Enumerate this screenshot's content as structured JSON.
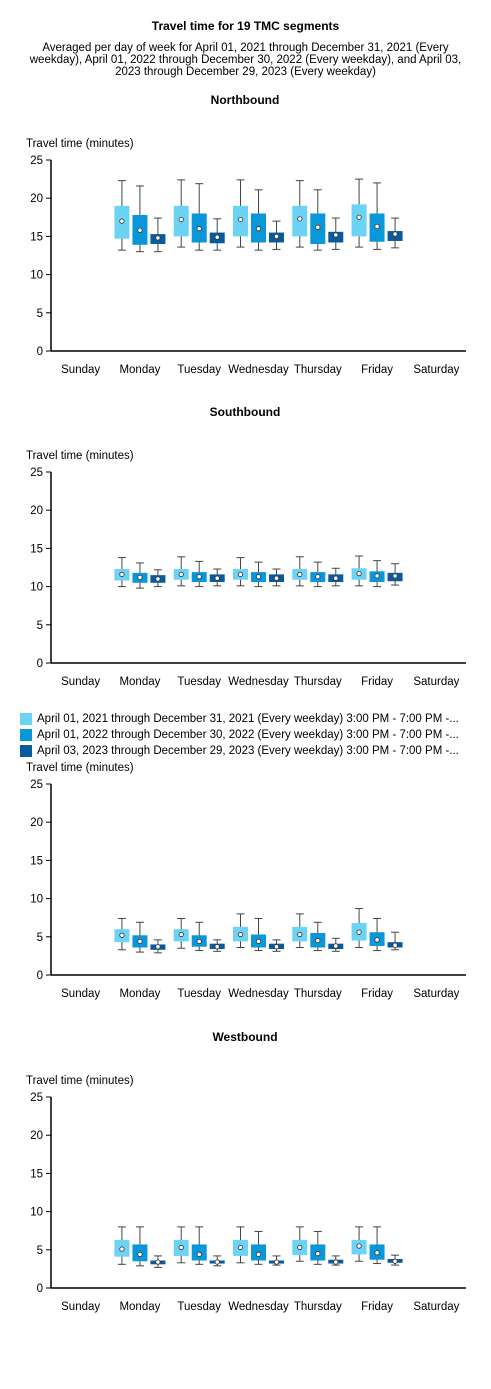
{
  "title": "Travel time for 19 TMC segments",
  "subtitle": "Averaged per day of week for April 01, 2021 through December 31, 2021 (Every weekday), April 01, 2022 through December 30, 2022 (Every weekday), and April 03, 2023 through December 29, 2023 (Every weekday)",
  "legend": [
    {
      "label": "April 01, 2021 through December 31, 2021 (Every weekday) 3:00 PM - 7:00 PM -...",
      "color": "#6dd3f5"
    },
    {
      "label": "April 01, 2022 through December 30, 2022 (Every weekday) 3:00 PM - 7:00 PM -...",
      "color": "#0a97d9"
    },
    {
      "label": "April 03, 2023 through December 29, 2023 (Every weekday) 3:00 PM - 7:00 PM -...",
      "color": "#0a5a9c"
    }
  ],
  "chart_data": [
    {
      "type": "box",
      "title": "Northbound",
      "ylabel": "Travel time (minutes)",
      "ylim": [
        0,
        25
      ],
      "yticks": [
        0,
        5,
        10,
        15,
        20,
        25
      ],
      "categories": [
        "Sunday",
        "Monday",
        "Tuesday",
        "Wednesday",
        "Thursday",
        "Friday",
        "Saturday"
      ],
      "series": [
        {
          "boxes": [
            null,
            {
              "min": 13.2,
              "q1": 14.7,
              "median": 17.0,
              "q3": 19.0,
              "max": 22.3
            },
            {
              "min": 13.6,
              "q1": 15.0,
              "median": 17.2,
              "q3": 19.0,
              "max": 22.4
            },
            {
              "min": 13.6,
              "q1": 15.0,
              "median": 17.2,
              "q3": 19.0,
              "max": 22.4
            },
            {
              "min": 13.6,
              "q1": 15.0,
              "median": 17.3,
              "q3": 19.0,
              "max": 22.3
            },
            {
              "min": 13.6,
              "q1": 15.0,
              "median": 17.5,
              "q3": 19.2,
              "max": 22.5
            },
            null
          ]
        },
        {
          "boxes": [
            null,
            {
              "min": 13.0,
              "q1": 13.9,
              "median": 15.8,
              "q3": 17.8,
              "max": 21.6
            },
            {
              "min": 13.2,
              "q1": 14.2,
              "median": 16.0,
              "q3": 18.0,
              "max": 21.9
            },
            {
              "min": 13.2,
              "q1": 14.2,
              "median": 16.0,
              "q3": 18.0,
              "max": 21.1
            },
            {
              "min": 13.2,
              "q1": 14.0,
              "median": 16.2,
              "q3": 18.0,
              "max": 21.1
            },
            {
              "min": 13.3,
              "q1": 14.3,
              "median": 16.3,
              "q3": 18.0,
              "max": 22.0
            },
            null
          ]
        },
        {
          "boxes": [
            null,
            {
              "min": 13.0,
              "q1": 14.0,
              "median": 14.8,
              "q3": 15.3,
              "max": 17.4
            },
            {
              "min": 13.2,
              "q1": 14.1,
              "median": 14.9,
              "q3": 15.5,
              "max": 17.3
            },
            {
              "min": 13.3,
              "q1": 14.2,
              "median": 15.0,
              "q3": 15.5,
              "max": 17.0
            },
            {
              "min": 13.3,
              "q1": 14.2,
              "median": 15.2,
              "q3": 15.6,
              "max": 17.4
            },
            {
              "min": 13.5,
              "q1": 14.4,
              "median": 15.3,
              "q3": 15.7,
              "max": 17.4
            },
            null
          ]
        }
      ]
    },
    {
      "type": "box",
      "title": "Southbound",
      "ylabel": "Travel time (minutes)",
      "ylim": [
        0,
        25
      ],
      "yticks": [
        0,
        5,
        10,
        15,
        20,
        25
      ],
      "categories": [
        "Sunday",
        "Monday",
        "Tuesday",
        "Wednesday",
        "Thursday",
        "Friday",
        "Saturday"
      ],
      "series": [
        {
          "boxes": [
            null,
            {
              "min": 10.0,
              "q1": 10.8,
              "median": 11.6,
              "q3": 12.3,
              "max": 13.8
            },
            {
              "min": 10.1,
              "q1": 10.9,
              "median": 11.6,
              "q3": 12.3,
              "max": 13.9
            },
            {
              "min": 10.1,
              "q1": 10.9,
              "median": 11.6,
              "q3": 12.3,
              "max": 13.8
            },
            {
              "min": 10.1,
              "q1": 10.9,
              "median": 11.6,
              "q3": 12.3,
              "max": 13.9
            },
            {
              "min": 10.1,
              "q1": 10.9,
              "median": 11.7,
              "q3": 12.4,
              "max": 14.0
            },
            null
          ]
        },
        {
          "boxes": [
            null,
            {
              "min": 9.8,
              "q1": 10.5,
              "median": 11.2,
              "q3": 11.8,
              "max": 13.1
            },
            {
              "min": 10.0,
              "q1": 10.6,
              "median": 11.3,
              "q3": 11.9,
              "max": 13.3
            },
            {
              "min": 10.0,
              "q1": 10.6,
              "median": 11.3,
              "q3": 11.9,
              "max": 13.2
            },
            {
              "min": 10.0,
              "q1": 10.6,
              "median": 11.3,
              "q3": 11.9,
              "max": 13.2
            },
            {
              "min": 10.0,
              "q1": 10.6,
              "median": 11.4,
              "q3": 12.0,
              "max": 13.4
            },
            null
          ]
        },
        {
          "boxes": [
            null,
            {
              "min": 10.0,
              "q1": 10.5,
              "median": 11.0,
              "q3": 11.5,
              "max": 12.2
            },
            {
              "min": 10.1,
              "q1": 10.6,
              "median": 11.1,
              "q3": 11.6,
              "max": 12.3
            },
            {
              "min": 10.1,
              "q1": 10.6,
              "median": 11.1,
              "q3": 11.6,
              "max": 12.3
            },
            {
              "min": 10.1,
              "q1": 10.6,
              "median": 11.1,
              "q3": 11.6,
              "max": 12.4
            },
            {
              "min": 10.2,
              "q1": 10.7,
              "median": 11.4,
              "q3": 11.8,
              "max": 13.0
            },
            null
          ]
        }
      ]
    },
    {
      "type": "box",
      "title": "",
      "ylabel": "Travel time (minutes)",
      "ylim": [
        0,
        25
      ],
      "yticks": [
        0,
        5,
        10,
        15,
        20,
        25
      ],
      "categories": [
        "Sunday",
        "Monday",
        "Tuesday",
        "Wednesday",
        "Thursday",
        "Friday",
        "Saturday"
      ],
      "series": [
        {
          "boxes": [
            null,
            {
              "min": 3.3,
              "q1": 4.3,
              "median": 5.2,
              "q3": 6.0,
              "max": 7.4
            },
            {
              "min": 3.5,
              "q1": 4.4,
              "median": 5.3,
              "q3": 6.0,
              "max": 7.4
            },
            {
              "min": 3.6,
              "q1": 4.4,
              "median": 5.3,
              "q3": 6.3,
              "max": 8.0
            },
            {
              "min": 3.6,
              "q1": 4.4,
              "median": 5.3,
              "q3": 6.3,
              "max": 8.0
            },
            {
              "min": 3.6,
              "q1": 4.5,
              "median": 5.6,
              "q3": 6.8,
              "max": 8.7
            },
            null
          ]
        },
        {
          "boxes": [
            null,
            {
              "min": 3.0,
              "q1": 3.6,
              "median": 4.4,
              "q3": 5.2,
              "max": 6.9
            },
            {
              "min": 3.2,
              "q1": 3.7,
              "median": 4.4,
              "q3": 5.2,
              "max": 6.9
            },
            {
              "min": 3.2,
              "q1": 3.6,
              "median": 4.4,
              "q3": 5.3,
              "max": 7.4
            },
            {
              "min": 3.2,
              "q1": 3.6,
              "median": 4.5,
              "q3": 5.5,
              "max": 6.9
            },
            {
              "min": 3.2,
              "q1": 3.8,
              "median": 4.6,
              "q3": 5.6,
              "max": 7.4
            },
            null
          ]
        },
        {
          "boxes": [
            null,
            {
              "min": 2.9,
              "q1": 3.3,
              "median": 3.7,
              "q3": 4.0,
              "max": 4.6
            },
            {
              "min": 3.1,
              "q1": 3.4,
              "median": 3.7,
              "q3": 4.1,
              "max": 4.6
            },
            {
              "min": 3.1,
              "q1": 3.4,
              "median": 3.7,
              "q3": 4.1,
              "max": 4.6
            },
            {
              "min": 3.1,
              "q1": 3.4,
              "median": 3.8,
              "q3": 4.1,
              "max": 4.8
            },
            {
              "min": 3.3,
              "q1": 3.6,
              "median": 3.9,
              "q3": 4.3,
              "max": 5.6
            },
            null
          ]
        }
      ]
    },
    {
      "type": "box",
      "title": "Westbound",
      "ylabel": "Travel time (minutes)",
      "ylim": [
        0,
        25
      ],
      "yticks": [
        0,
        5,
        10,
        15,
        20,
        25
      ],
      "categories": [
        "Sunday",
        "Monday",
        "Tuesday",
        "Wednesday",
        "Thursday",
        "Friday",
        "Saturday"
      ],
      "series": [
        {
          "boxes": [
            null,
            {
              "min": 3.1,
              "q1": 4.1,
              "median": 5.1,
              "q3": 6.3,
              "max": 8.0
            },
            {
              "min": 3.3,
              "q1": 4.2,
              "median": 5.3,
              "q3": 6.3,
              "max": 8.0
            },
            {
              "min": 3.3,
              "q1": 4.2,
              "median": 5.3,
              "q3": 6.3,
              "max": 8.0
            },
            {
              "min": 3.5,
              "q1": 4.3,
              "median": 5.3,
              "q3": 6.3,
              "max": 8.0
            },
            {
              "min": 3.5,
              "q1": 4.4,
              "median": 5.5,
              "q3": 6.3,
              "max": 8.0
            },
            null
          ]
        },
        {
          "boxes": [
            null,
            {
              "min": 2.9,
              "q1": 3.5,
              "median": 4.4,
              "q3": 5.7,
              "max": 8.0
            },
            {
              "min": 3.1,
              "q1": 3.6,
              "median": 4.4,
              "q3": 5.7,
              "max": 8.0
            },
            {
              "min": 3.1,
              "q1": 3.6,
              "median": 4.4,
              "q3": 5.7,
              "max": 7.4
            },
            {
              "min": 3.1,
              "q1": 3.6,
              "median": 4.5,
              "q3": 5.7,
              "max": 7.4
            },
            {
              "min": 3.2,
              "q1": 3.7,
              "median": 4.6,
              "q3": 5.7,
              "max": 8.0
            },
            null
          ]
        },
        {
          "boxes": [
            null,
            {
              "min": 2.7,
              "q1": 3.1,
              "median": 3.4,
              "q3": 3.6,
              "max": 4.2
            },
            {
              "min": 2.9,
              "q1": 3.2,
              "median": 3.4,
              "q3": 3.6,
              "max": 4.2
            },
            {
              "min": 3.0,
              "q1": 3.2,
              "median": 3.4,
              "q3": 3.6,
              "max": 4.2
            },
            {
              "min": 3.0,
              "q1": 3.2,
              "median": 3.4,
              "q3": 3.7,
              "max": 4.2
            },
            {
              "min": 3.0,
              "q1": 3.3,
              "median": 3.5,
              "q3": 3.8,
              "max": 4.3
            },
            null
          ]
        }
      ]
    }
  ]
}
